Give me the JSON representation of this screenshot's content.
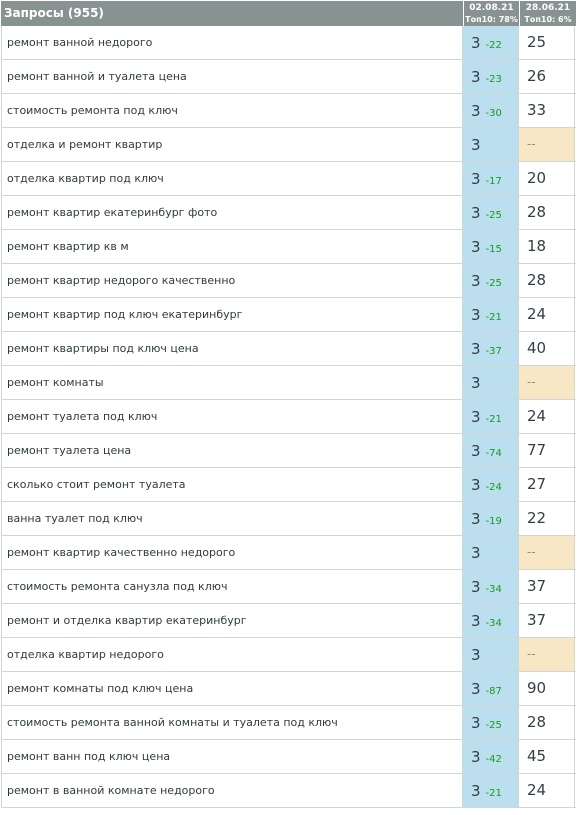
{
  "header": {
    "title": "Запросы (955)",
    "col1_date": "02.08.21",
    "col1_top": "Топ10: 78%",
    "col2_date": "28.06.21",
    "col2_top": "Топ10: 6%"
  },
  "colors": {
    "header_bg": "#879391",
    "current_cell_bg": "#bcdff0",
    "missing_cell_bg": "#f8e7c4",
    "change_green": "#1a9a1a"
  },
  "rows": [
    {
      "query": "ремонт ванной недорого",
      "pos": "3",
      "change": "-22",
      "prev": "25"
    },
    {
      "query": "ремонт ванной и туалета цена",
      "pos": "3",
      "change": "-23",
      "prev": "26"
    },
    {
      "query": "стоимость ремонта под ключ",
      "pos": "3",
      "change": "-30",
      "prev": "33"
    },
    {
      "query": "отделка и ремонт квартир",
      "pos": "3",
      "change": "",
      "prev": "--"
    },
    {
      "query": "отделка квартир под ключ",
      "pos": "3",
      "change": "-17",
      "prev": "20"
    },
    {
      "query": "ремонт квартир екатеринбург фото",
      "pos": "3",
      "change": "-25",
      "prev": "28"
    },
    {
      "query": "ремонт квартир кв м",
      "pos": "3",
      "change": "-15",
      "prev": "18"
    },
    {
      "query": "ремонт квартир недорого качественно",
      "pos": "3",
      "change": "-25",
      "prev": "28"
    },
    {
      "query": "ремонт квартир под ключ екатеринбург",
      "pos": "3",
      "change": "-21",
      "prev": "24"
    },
    {
      "query": "ремонт квартиры под ключ цена",
      "pos": "3",
      "change": "-37",
      "prev": "40"
    },
    {
      "query": "ремонт комнаты",
      "pos": "3",
      "change": "",
      "prev": "--"
    },
    {
      "query": "ремонт туалета под ключ",
      "pos": "3",
      "change": "-21",
      "prev": "24"
    },
    {
      "query": "ремонт туалета цена",
      "pos": "3",
      "change": "-74",
      "prev": "77"
    },
    {
      "query": "сколько стоит ремонт туалета",
      "pos": "3",
      "change": "-24",
      "prev": "27"
    },
    {
      "query": "ванна туалет под ключ",
      "pos": "3",
      "change": "-19",
      "prev": "22"
    },
    {
      "query": "ремонт квартир качественно недорого",
      "pos": "3",
      "change": "",
      "prev": "--"
    },
    {
      "query": "стоимость ремонта санузла под ключ",
      "pos": "3",
      "change": "-34",
      "prev": "37"
    },
    {
      "query": "ремонт и отделка квартир екатеринбург",
      "pos": "3",
      "change": "-34",
      "prev": "37"
    },
    {
      "query": "отделка квартир недорого",
      "pos": "3",
      "change": "",
      "prev": "--"
    },
    {
      "query": "ремонт комнаты под ключ цена",
      "pos": "3",
      "change": "-87",
      "prev": "90"
    },
    {
      "query": "стоимость ремонта ванной комнаты и туалета под ключ",
      "pos": "3",
      "change": "-25",
      "prev": "28"
    },
    {
      "query": "ремонт ванн под ключ цена",
      "pos": "3",
      "change": "-42",
      "prev": "45"
    },
    {
      "query": "ремонт в ванной комнате недорого",
      "pos": "3",
      "change": "-21",
      "prev": "24"
    }
  ]
}
